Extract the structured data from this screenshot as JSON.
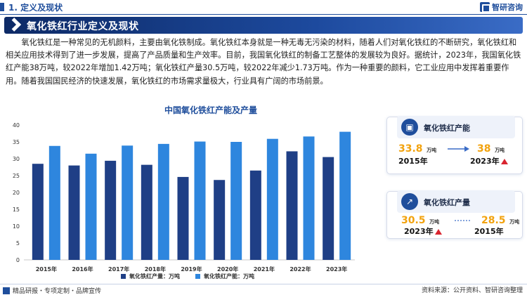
{
  "header": {
    "section": "1. 定义及现状",
    "logo": "智研咨询"
  },
  "title": "氧化铁红行业定义及现状",
  "paragraph": "氧化铁红是一种常见的无机颜料，主要由氧化铁制成。氧化铁红本身就是一种无毒无污染的材料，随着人们对氧化铁红的不断研究，氧化铁红和相关应用技术得到了进一步发展，提高了产品质量和生产效率。目前，我国氧化铁红的制备工艺整体的发展较为良好。据统计，2023年，我国氧化铁红产能38万吨，较2022年增加1.42万吨；氧化铁红产量30.5万吨，较2022年减少1.73万吨。作为一种重要的颜料，它工业应用中发挥着重要作用。随着我国国民经济的快速发展，氧化铁红的市场需求量极大，行业具有广阔的市场前景。",
  "chart_data": {
    "type": "bar",
    "title": "中国氧化铁红产能及产量",
    "categories": [
      "2015年",
      "2016年",
      "2017年",
      "2018年",
      "2019年",
      "2020年",
      "2021年",
      "2022年",
      "2023年"
    ],
    "series": [
      {
        "name": "氧化铁红产量：万吨",
        "color": "#1f3f86",
        "values": [
          28.5,
          28.0,
          29.4,
          28.2,
          24.6,
          23.7,
          26.5,
          32.2,
          30.5
        ]
      },
      {
        "name": "氧化铁红产能：万吨",
        "color": "#2e86de",
        "values": [
          33.8,
          31.5,
          33.9,
          34.4,
          35.1,
          35.0,
          35.9,
          36.6,
          38.0
        ]
      }
    ],
    "ylim": [
      0,
      40
    ],
    "yticks": [
      0,
      5,
      10,
      15,
      20,
      25,
      30,
      35,
      40
    ],
    "grid": false,
    "legend": "bottom"
  },
  "cards": {
    "capacity": {
      "title": "氧化铁红产能",
      "left_value": "33.8",
      "left_unit": "万吨",
      "left_year": "2015年",
      "right_value": "38",
      "right_unit": "万吨",
      "right_year": "2023年"
    },
    "output": {
      "title": "氧化铁红产量",
      "left_value": "30.5",
      "left_unit": "万吨",
      "left_year": "2023年",
      "right_value": "28.5",
      "right_unit": "万吨",
      "right_year": "2015年"
    }
  },
  "footer": {
    "left": "精品研报・专项定制・品牌宣传",
    "right": "资料来源：公开资料、智研咨询整理"
  },
  "colors": {
    "brand": "#1f4e9c",
    "accent": "#f2a20d",
    "up": "#d9242f"
  }
}
